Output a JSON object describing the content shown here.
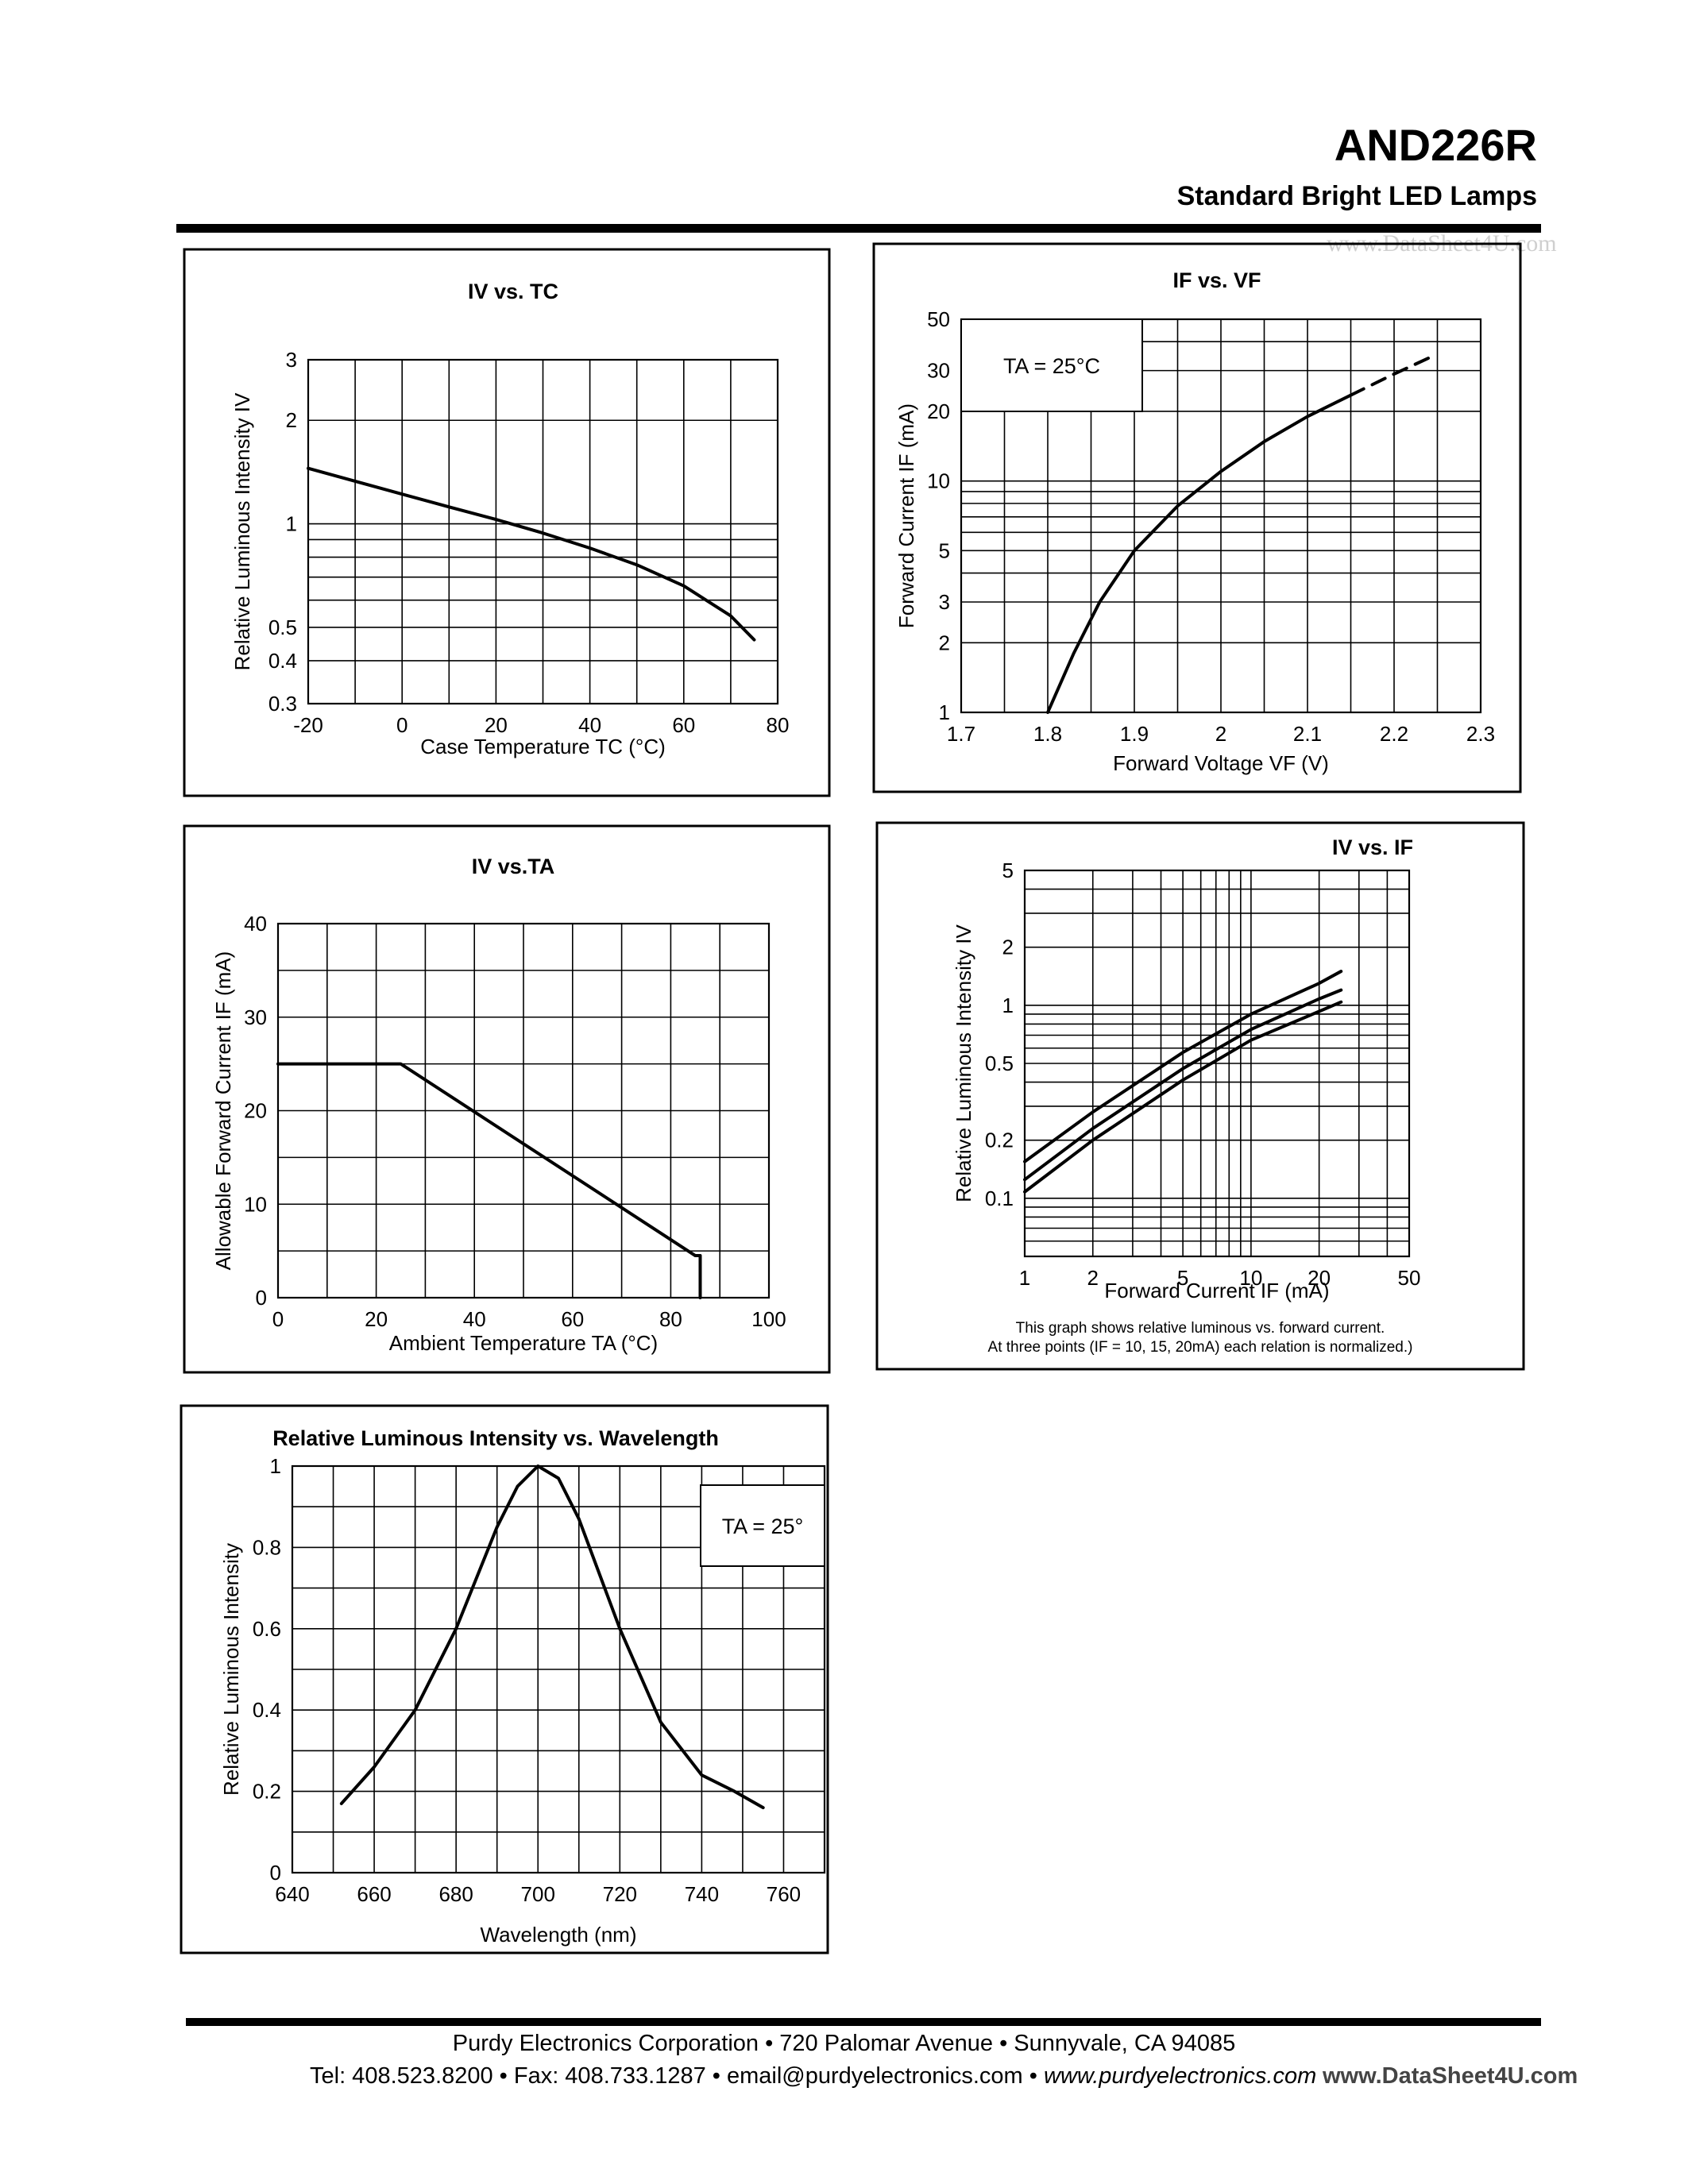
{
  "header": {
    "part_number": "AND226R",
    "subtitle": "Standard Bright LED Lamps",
    "watermark": "www.DataSheet4U.com"
  },
  "footer": {
    "line1": "Purdy Electronics Corporation  •  720 Palomar Avenue  •  Sunnyvale, CA 94085",
    "line2_text": "Tel: 408.523.8200  •  Fax: 408.733.1287  •  email@purdyelectronics.com  •  ",
    "line2_web": "www.purdyelectronics.com",
    "watermark": "www.DataSheet4U.com"
  },
  "chart_data": [
    {
      "id": "iv-vs-tc",
      "type": "line",
      "title": "IV vs. TC",
      "xlabel": "Case Temperature TC (°C)",
      "ylabel": "Relative Luminous Intensity IV",
      "xlim": [
        -20,
        80
      ],
      "ylim": [
        0.3,
        3
      ],
      "yscale": "log",
      "x_ticks": [
        -20,
        0,
        20,
        40,
        60,
        80
      ],
      "y_ticks": [
        0.3,
        0.4,
        0.5,
        1,
        2,
        3
      ],
      "grid": true,
      "series": [
        {
          "x": [
            -20,
            -10,
            0,
            10,
            20,
            30,
            40,
            50,
            60,
            70,
            75
          ],
          "y": [
            1.45,
            1.33,
            1.22,
            1.12,
            1.03,
            0.94,
            0.85,
            0.76,
            0.66,
            0.54,
            0.46
          ]
        }
      ]
    },
    {
      "id": "if-vs-vf",
      "type": "line",
      "title": "IF vs. VF",
      "xlabel": "Forward Voltage VF (V)",
      "ylabel": "Forward Current IF (mA)",
      "xlim": [
        1.7,
        2.3
      ],
      "ylim": [
        1,
        50
      ],
      "yscale": "log",
      "x_ticks": [
        1.7,
        1.8,
        1.9,
        2.0,
        2.1,
        2.2,
        2.3
      ],
      "y_ticks": [
        1,
        2,
        3,
        5,
        10,
        20,
        30,
        50
      ],
      "annotation": "TA = 25°C",
      "grid": true,
      "series": [
        {
          "x": [
            1.8,
            1.83,
            1.86,
            1.9,
            1.95,
            2.0,
            2.05,
            2.1,
            2.15
          ],
          "y": [
            1.0,
            1.8,
            3.0,
            5.0,
            7.8,
            11.0,
            14.8,
            19.0,
            23.5
          ]
        },
        {
          "x": [
            2.15,
            2.2,
            2.24
          ],
          "y": [
            23.5,
            29.0,
            34.0
          ],
          "style": "dashed"
        }
      ]
    },
    {
      "id": "if-vs-ta",
      "type": "line",
      "title": "IV vs.TA",
      "xlabel": "Ambient Temperature TA (°C)",
      "ylabel": "Allowable Forward Current IF (mA)",
      "xlim": [
        0,
        100
      ],
      "ylim": [
        0,
        40
      ],
      "x_ticks": [
        0,
        20,
        40,
        60,
        80,
        100
      ],
      "y_ticks": [
        0,
        10,
        20,
        30,
        40
      ],
      "grid": true,
      "series": [
        {
          "x": [
            0,
            25,
            85,
            86,
            86
          ],
          "y": [
            25,
            25,
            4.5,
            4.5,
            0
          ]
        }
      ]
    },
    {
      "id": "iv-vs-if",
      "type": "line",
      "title": "IV vs. IF",
      "xlabel": "Forward Current IF (mA)",
      "ylabel": "Relative Luminous Intensity IV",
      "xlim": [
        1,
        50
      ],
      "ylim": [
        0.05,
        5
      ],
      "xscale": "log",
      "yscale": "log",
      "x_ticks": [
        1,
        2,
        5,
        10,
        20,
        50
      ],
      "y_ticks": [
        0.1,
        0.2,
        0.5,
        1,
        2,
        5
      ],
      "grid": true,
      "note_line1": "This graph shows relative luminous vs. forward current.",
      "note_line2": "At three points (IF = 10, 15, 20mA) each relation is normalized.)",
      "series": [
        {
          "x": [
            1,
            2,
            5,
            10,
            20,
            25
          ],
          "y": [
            0.155,
            0.28,
            0.57,
            0.9,
            1.3,
            1.5
          ]
        },
        {
          "x": [
            1,
            2,
            5,
            10,
            20,
            25
          ],
          "y": [
            0.125,
            0.23,
            0.47,
            0.75,
            1.08,
            1.2
          ]
        },
        {
          "x": [
            1,
            2,
            5,
            10,
            20,
            25
          ],
          "y": [
            0.108,
            0.2,
            0.41,
            0.66,
            0.93,
            1.04
          ]
        }
      ]
    },
    {
      "id": "iv-vs-wavelength",
      "type": "line",
      "title": "Relative Luminous Intensity vs. Wavelength",
      "xlabel": "Wavelength  (nm)",
      "ylabel": "Relative Luminous Intensity",
      "xlim": [
        640,
        770
      ],
      "ylim": [
        0,
        1.0
      ],
      "x_ticks": [
        640,
        660,
        680,
        700,
        720,
        740,
        760
      ],
      "y_ticks": [
        0,
        0.2,
        0.4,
        0.6,
        0.8,
        1.0
      ],
      "annotation": "TA = 25°",
      "grid": true,
      "series": [
        {
          "x": [
            652,
            660,
            670,
            680,
            690,
            695,
            700,
            705,
            710,
            720,
            730,
            740,
            748,
            755
          ],
          "y": [
            0.17,
            0.26,
            0.4,
            0.6,
            0.85,
            0.95,
            1.0,
            0.97,
            0.87,
            0.6,
            0.37,
            0.24,
            0.2,
            0.16
          ]
        }
      ]
    }
  ]
}
